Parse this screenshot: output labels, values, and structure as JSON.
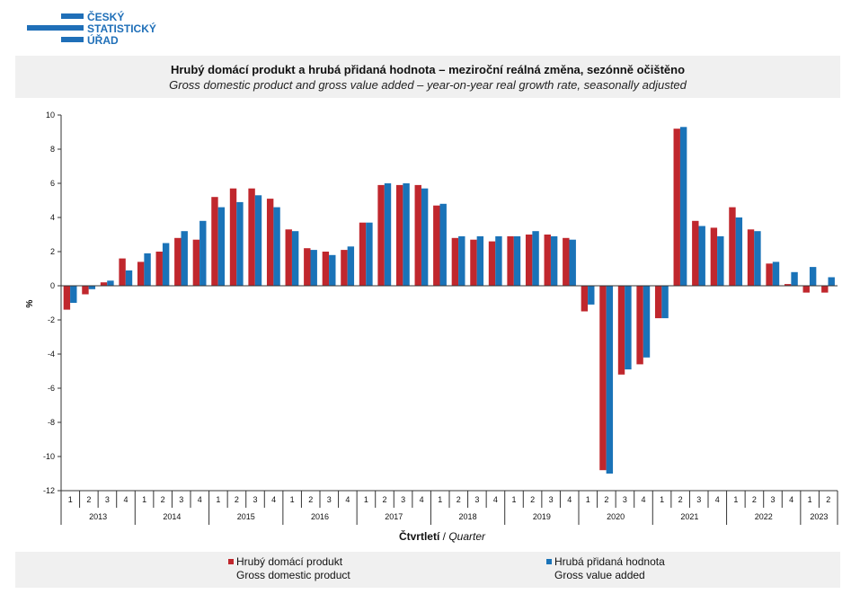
{
  "logo": {
    "lines": [
      "ČESKÝ",
      "STATISTICKÝ",
      "ÚŘAD"
    ],
    "color": "#1f6fb8"
  },
  "title": {
    "cz": "Hrubý domácí produkt a hrubá přidaná hodnota – meziroční reálná změna, sezónně očištěno",
    "en": "Gross domestic product and gross value added – year-on-year real growth rate, seasonally adjusted"
  },
  "chart_data": {
    "type": "bar",
    "ylabel": "%",
    "xlabel_cz": "Čtvrtletí",
    "xlabel_sep": " / ",
    "xlabel_en": "Quarter",
    "ylim": [
      -12,
      10
    ],
    "yticks": [
      -12,
      -10,
      -8,
      -6,
      -4,
      -2,
      0,
      2,
      4,
      6,
      8,
      10
    ],
    "quarters": [
      "1",
      "2",
      "3",
      "4",
      "1",
      "2",
      "3",
      "4",
      "1",
      "2",
      "3",
      "4",
      "1",
      "2",
      "3",
      "4",
      "1",
      "2",
      "3",
      "4",
      "1",
      "2",
      "3",
      "4",
      "1",
      "2",
      "3",
      "4",
      "1",
      "2",
      "3",
      "4",
      "1",
      "2",
      "3",
      "4",
      "1",
      "2",
      "3",
      "4",
      "1",
      "2"
    ],
    "years": [
      {
        "label": "2013",
        "count": 4
      },
      {
        "label": "2014",
        "count": 4
      },
      {
        "label": "2015",
        "count": 4
      },
      {
        "label": "2016",
        "count": 4
      },
      {
        "label": "2017",
        "count": 4
      },
      {
        "label": "2018",
        "count": 4
      },
      {
        "label": "2019",
        "count": 4
      },
      {
        "label": "2020",
        "count": 4
      },
      {
        "label": "2021",
        "count": 4
      },
      {
        "label": "2022",
        "count": 4
      },
      {
        "label": "2023",
        "count": 2
      }
    ],
    "series": [
      {
        "name_cz": "Hrubý domácí produkt",
        "name_en": "Gross domestic product",
        "color": "#c0272d",
        "values": [
          -1.4,
          -0.5,
          0.2,
          1.6,
          1.4,
          2.0,
          2.8,
          2.7,
          5.2,
          5.7,
          5.7,
          5.1,
          3.3,
          2.2,
          2.0,
          2.1,
          3.7,
          5.9,
          5.9,
          5.9,
          4.7,
          2.8,
          2.7,
          2.6,
          2.9,
          3.0,
          3.0,
          2.8,
          -1.5,
          -10.8,
          -5.2,
          -4.6,
          -1.9,
          9.2,
          3.8,
          3.4,
          4.6,
          3.3,
          1.3,
          0.1,
          -0.4,
          -0.4
        ]
      },
      {
        "name_cz": "Hrubá přidaná hodnota",
        "name_en": "Gross value added",
        "color": "#1a73b8",
        "values": [
          -1.0,
          -0.2,
          0.3,
          0.9,
          1.9,
          2.5,
          3.2,
          3.8,
          4.6,
          4.9,
          5.3,
          4.6,
          3.2,
          2.1,
          1.8,
          2.3,
          3.7,
          6.0,
          6.0,
          5.7,
          4.8,
          2.9,
          2.9,
          2.9,
          2.9,
          3.2,
          2.9,
          2.7,
          -1.1,
          -11.0,
          -4.9,
          -4.2,
          -1.9,
          9.3,
          3.5,
          2.9,
          4.0,
          3.2,
          1.4,
          0.8,
          1.1,
          0.5
        ]
      }
    ]
  }
}
